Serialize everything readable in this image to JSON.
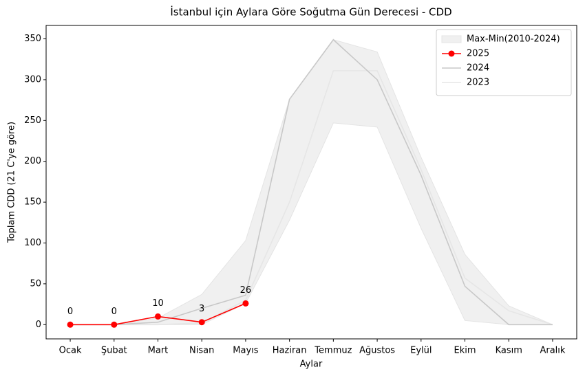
{
  "chart_data": {
    "type": "line",
    "title": "İstanbul için Aylara Göre Soğutma Gün Derecesi - CDD",
    "x_label": "Aylar",
    "y_label": "Toplam CDD (21 C'ye göre)",
    "categories": [
      "Ocak",
      "Şubat",
      "Mart",
      "Nisan",
      "Mayıs",
      "Haziran",
      "Temmuz",
      "Ağustos",
      "Eylül",
      "Ekim",
      "Kasım",
      "Aralık"
    ],
    "band": {
      "name": "Max-Min(2010-2024)",
      "color": "#f0f0f0",
      "upper": [
        0,
        0,
        8,
        37,
        103,
        276,
        349,
        334,
        205,
        86,
        23,
        0
      ],
      "lower": [
        0,
        0,
        0,
        0,
        26,
        128,
        247,
        242,
        118,
        5,
        0,
        0
      ]
    },
    "series": [
      {
        "name": "2025",
        "color": "#ff0000",
        "markers": true,
        "data_labels": true,
        "values": [
          0,
          0,
          10,
          3,
          26,
          null,
          null,
          null,
          null,
          null,
          null,
          null
        ]
      },
      {
        "name": "2024",
        "color": "#c8c8c8",
        "values": [
          0,
          0,
          3,
          20,
          36,
          276,
          349,
          300,
          183,
          47,
          0,
          0
        ]
      },
      {
        "name": "2023",
        "color": "#e6e6e6",
        "values": [
          0,
          0,
          0,
          2,
          30,
          150,
          311,
          311,
          190,
          57,
          17,
          0
        ]
      }
    ],
    "ylim": [
      -17.45,
      366.45
    ],
    "yticks": [
      0,
      50,
      100,
      150,
      200,
      250,
      300,
      350
    ],
    "legend": "upper right"
  }
}
